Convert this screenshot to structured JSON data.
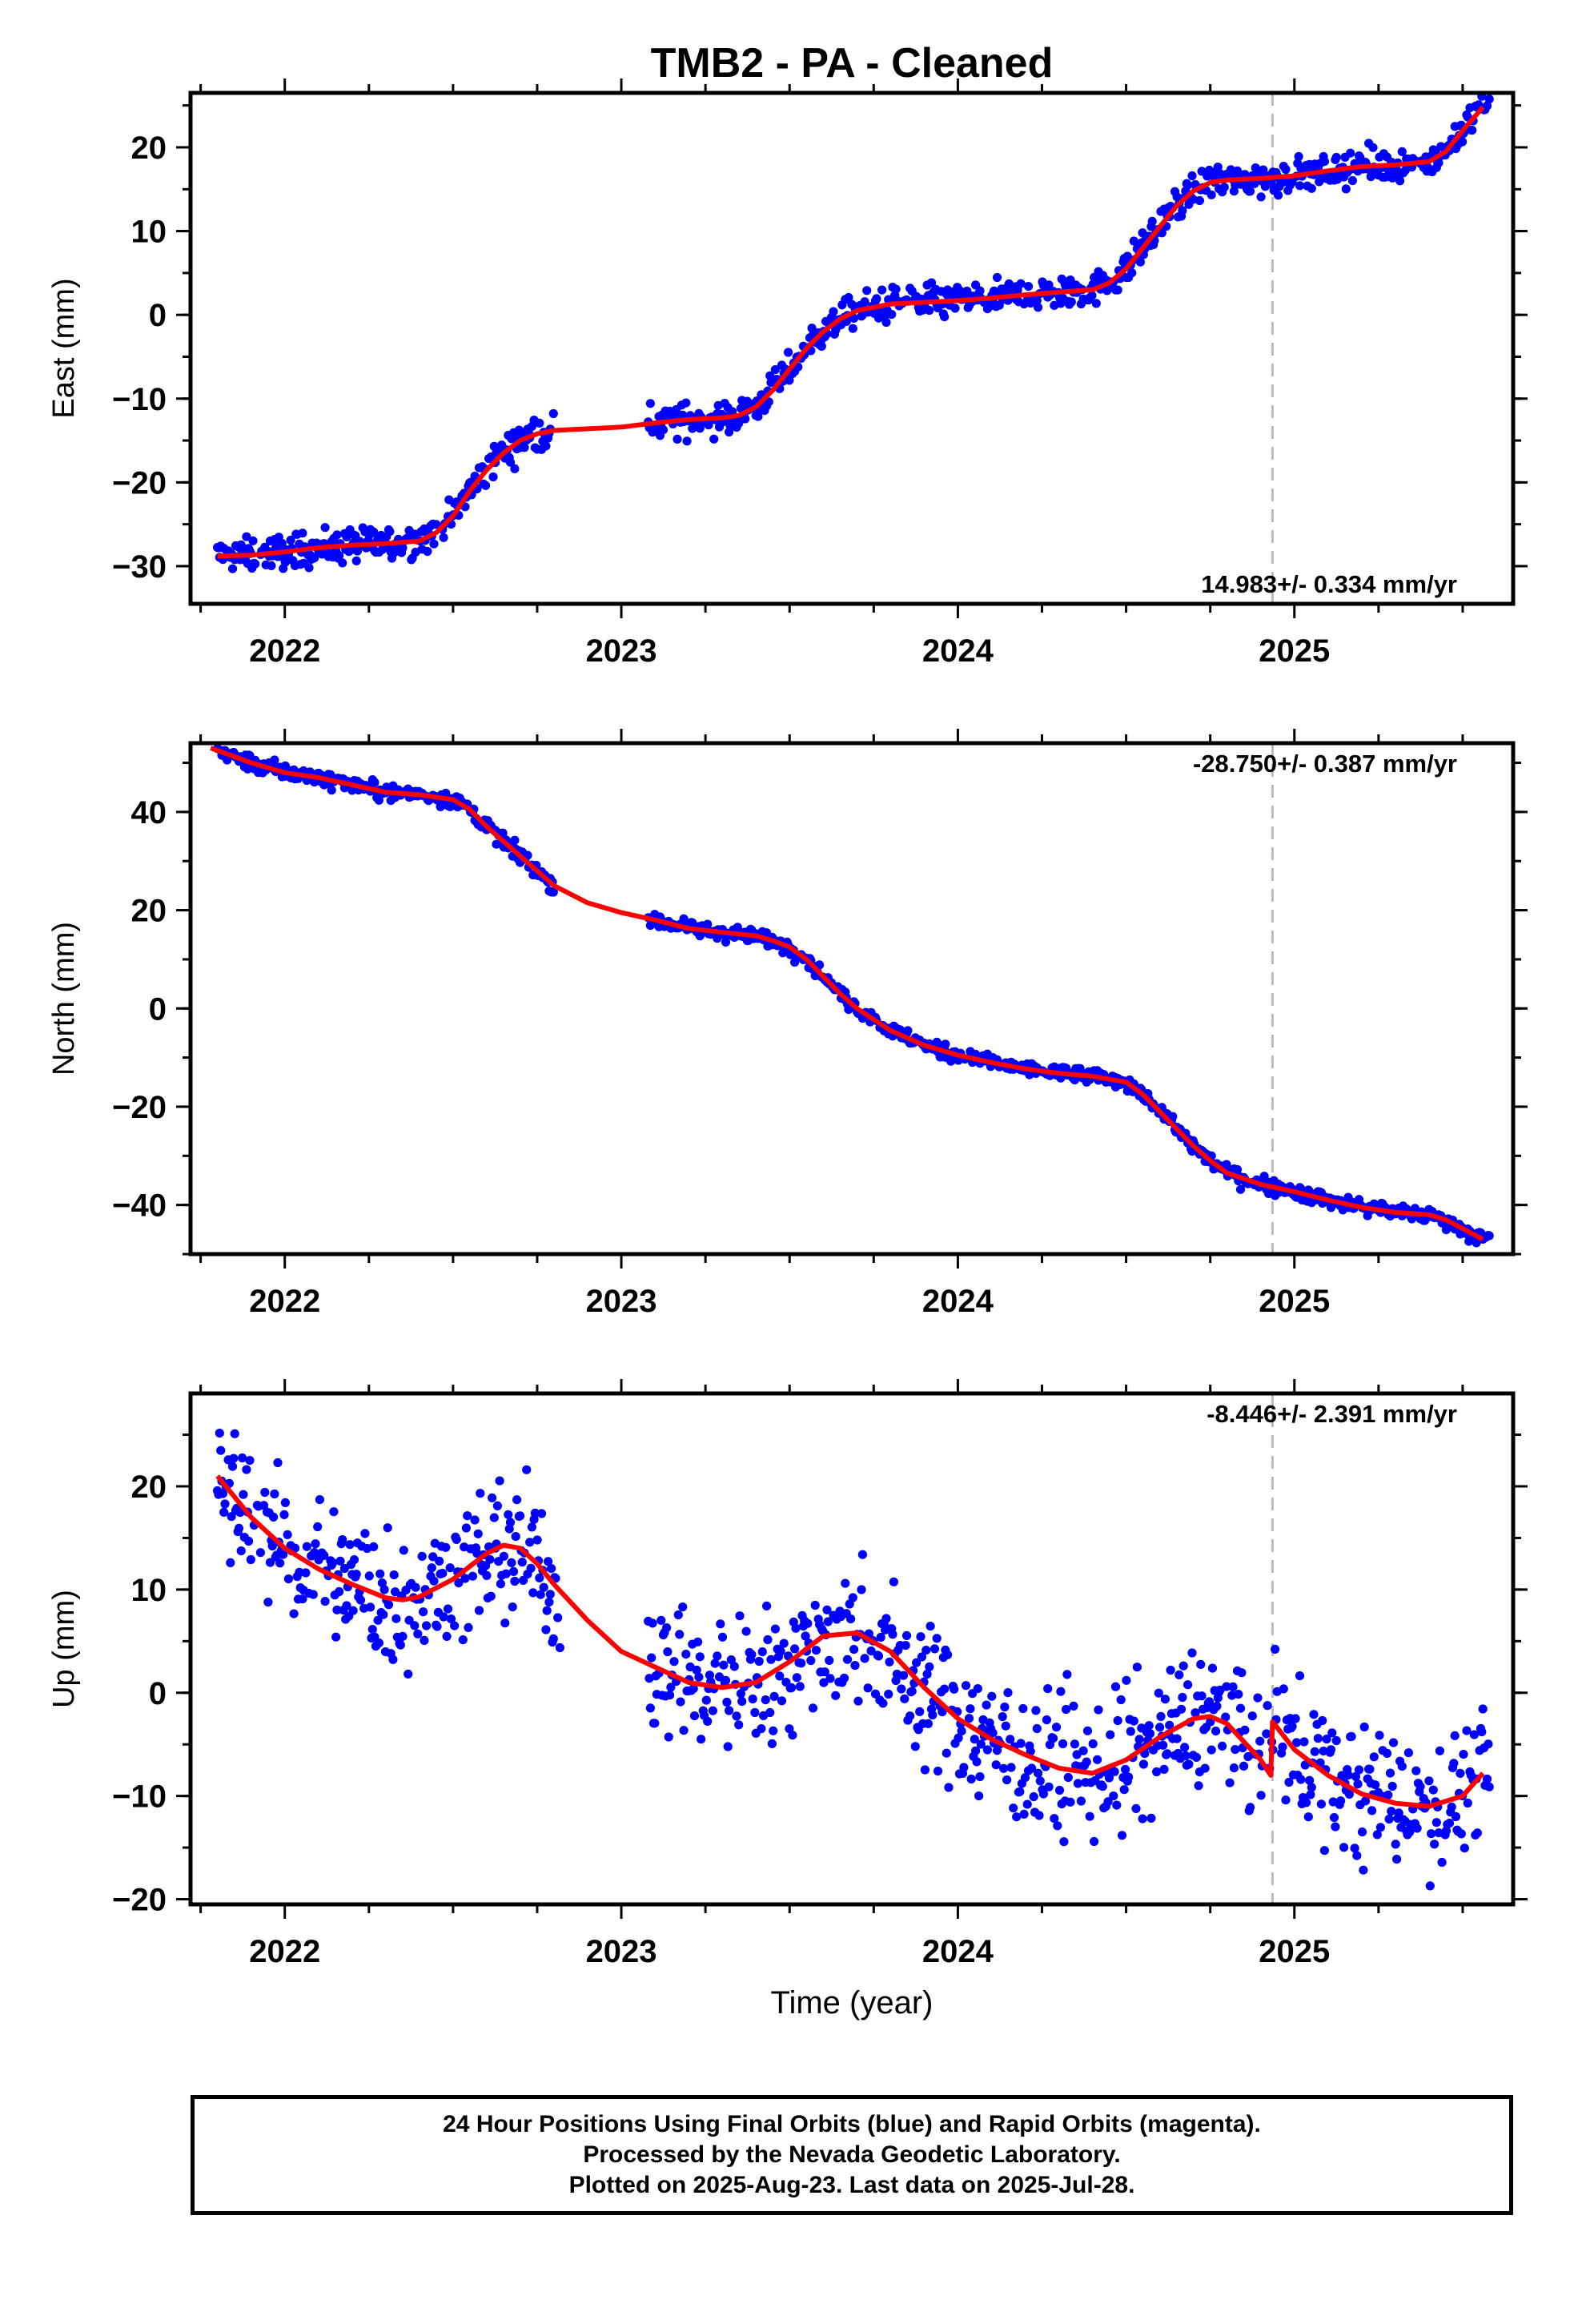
{
  "chart_data": [
    {
      "type": "scatter",
      "title": "TMB2  - PA - Cleaned",
      "ylabel": "East (mm)",
      "xlabel": "",
      "xlim": [
        2021.72,
        2025.65
      ],
      "ylim": [
        -34.5,
        26.5
      ],
      "xticks": [
        2022,
        2023,
        2024,
        2025
      ],
      "yticks": [
        -30,
        -20,
        -10,
        0,
        10,
        20
      ],
      "rate_label": "14.983+/- 0.334 mm/yr",
      "rate_position": "bottom-right",
      "event_marker_x": 2024.935,
      "series": [
        {
          "name": "Final Orbits (blue)",
          "color": "#0000ff",
          "noise": 1.4,
          "segments": [
            [
              2021.8,
              2022.8
            ],
            [
              2023.08,
              2025.58
            ]
          ]
        },
        {
          "name": "Model fit",
          "color": "#ff0000",
          "x": [
            2021.8,
            2021.9,
            2022.0,
            2022.1,
            2022.2,
            2022.3,
            2022.4,
            2022.45,
            2022.5,
            2022.55,
            2022.6,
            2022.65,
            2022.7,
            2022.75,
            2022.8,
            2022.9,
            2023.0,
            2023.1,
            2023.2,
            2023.3,
            2023.35,
            2023.4,
            2023.45,
            2023.5,
            2023.55,
            2023.6,
            2023.65,
            2023.7,
            2023.8,
            2023.9,
            2024.0,
            2024.1,
            2024.2,
            2024.3,
            2024.4,
            2024.45,
            2024.5,
            2024.55,
            2024.6,
            2024.65,
            2024.7,
            2024.75,
            2024.8,
            2024.9,
            2025.0,
            2025.1,
            2025.2,
            2025.3,
            2025.4,
            2025.45,
            2025.5,
            2025.56
          ],
          "y": [
            -28.8,
            -28.7,
            -28.3,
            -27.8,
            -27.5,
            -27.3,
            -27.0,
            -26.0,
            -24.0,
            -21.0,
            -18.5,
            -16.5,
            -15.0,
            -14.2,
            -13.8,
            -13.6,
            -13.4,
            -12.9,
            -12.5,
            -12.3,
            -12.0,
            -11.0,
            -9.0,
            -6.5,
            -4.0,
            -2.0,
            -0.5,
            0.5,
            1.3,
            1.5,
            1.7,
            2.0,
            2.4,
            2.7,
            3.0,
            3.8,
            5.5,
            8.0,
            10.5,
            13.0,
            14.8,
            15.8,
            16.1,
            16.3,
            16.6,
            17.2,
            17.7,
            17.9,
            18.3,
            19.5,
            22.0,
            24.8
          ]
        }
      ]
    },
    {
      "type": "scatter",
      "title": "",
      "ylabel": "North (mm)",
      "xlabel": "",
      "xlim": [
        2021.72,
        2025.65
      ],
      "ylim": [
        -50,
        54
      ],
      "xticks": [
        2022,
        2023,
        2024,
        2025
      ],
      "yticks": [
        -40,
        -20,
        0,
        20,
        40
      ],
      "rate_label": "-28.750+/- 0.387 mm/yr",
      "rate_position": "top-right",
      "event_marker_x": 2024.935,
      "series": [
        {
          "name": "Final Orbits (blue)",
          "color": "#0000ff",
          "noise": 1.1,
          "segments": [
            [
              2021.8,
              2022.8
            ],
            [
              2023.08,
              2025.58
            ]
          ]
        },
        {
          "name": "Model fit",
          "color": "#ff0000",
          "x": [
            2021.78,
            2021.9,
            2022.0,
            2022.1,
            2022.2,
            2022.3,
            2022.4,
            2022.5,
            2022.55,
            2022.6,
            2022.65,
            2022.7,
            2022.75,
            2022.8,
            2022.9,
            2023.0,
            2023.1,
            2023.2,
            2023.3,
            2023.4,
            2023.45,
            2023.5,
            2023.55,
            2023.6,
            2023.65,
            2023.7,
            2023.8,
            2023.9,
            2024.0,
            2024.1,
            2024.2,
            2024.3,
            2024.4,
            2024.5,
            2024.55,
            2024.6,
            2024.65,
            2024.7,
            2024.75,
            2024.8,
            2024.9,
            2025.0,
            2025.1,
            2025.2,
            2025.3,
            2025.4,
            2025.45,
            2025.5,
            2025.56
          ],
          "y": [
            53.0,
            50.0,
            48.0,
            47.0,
            45.5,
            44.0,
            43.5,
            42.5,
            40.5,
            37.0,
            34.0,
            31.0,
            28.0,
            25.0,
            21.5,
            19.5,
            18.0,
            16.3,
            15.5,
            14.8,
            13.8,
            12.5,
            10.0,
            6.5,
            3.0,
            0.0,
            -4.5,
            -7.5,
            -9.5,
            -11.0,
            -12.3,
            -13.2,
            -13.8,
            -15.0,
            -17.5,
            -21.0,
            -24.5,
            -28.0,
            -31.0,
            -33.5,
            -35.8,
            -37.3,
            -39.0,
            -40.5,
            -41.5,
            -42.0,
            -43.0,
            -44.8,
            -47.0
          ]
        }
      ]
    },
    {
      "type": "scatter",
      "title": "",
      "ylabel": "Up (mm)",
      "xlabel": "Time (year)",
      "xlim": [
        2021.72,
        2025.65
      ],
      "ylim": [
        -20.5,
        29
      ],
      "xticks": [
        2022,
        2023,
        2024,
        2025
      ],
      "yticks": [
        -20,
        -10,
        0,
        10,
        20
      ],
      "rate_label": "-8.446+/- 2.391 mm/yr",
      "rate_position": "top-right",
      "event_marker_x": 2024.935,
      "series": [
        {
          "name": "Final Orbits (blue)",
          "color": "#0000ff",
          "noise": 4.8,
          "segments": [
            [
              2021.8,
              2022.82
            ],
            [
              2023.08,
              2025.58
            ]
          ]
        },
        {
          "name": "Model fit",
          "color": "#ff0000",
          "x": [
            2021.8,
            2021.9,
            2022.0,
            2022.1,
            2022.2,
            2022.3,
            2022.35,
            2022.4,
            2022.5,
            2022.6,
            2022.65,
            2022.7,
            2022.75,
            2022.8,
            2022.9,
            2023.0,
            2023.1,
            2023.2,
            2023.3,
            2023.4,
            2023.5,
            2023.6,
            2023.7,
            2023.8,
            2023.9,
            2024.0,
            2024.1,
            2024.2,
            2024.3,
            2024.4,
            2024.5,
            2024.6,
            2024.7,
            2024.75,
            2024.8,
            2024.9,
            2024.93,
            2024.935,
            2025.0,
            2025.1,
            2025.2,
            2025.3,
            2025.4,
            2025.5,
            2025.56
          ],
          "y": [
            21.0,
            17.0,
            14.0,
            12.0,
            10.5,
            9.2,
            9.0,
            9.3,
            11.0,
            13.5,
            14.3,
            14.0,
            12.5,
            10.5,
            7.0,
            4.0,
            2.5,
            1.0,
            0.5,
            1.0,
            3.0,
            5.5,
            5.8,
            4.0,
            0.5,
            -2.5,
            -4.5,
            -6.0,
            -7.3,
            -7.8,
            -6.5,
            -4.3,
            -2.5,
            -2.3,
            -3.0,
            -6.5,
            -8.0,
            -2.8,
            -5.5,
            -8.0,
            -9.8,
            -10.7,
            -11.0,
            -10.0,
            -7.8
          ]
        }
      ]
    }
  ],
  "footer": {
    "line1": "24 Hour Positions Using Final Orbits (blue) and Rapid Orbits (magenta).",
    "line2": "Processed by the Nevada Geodetic Laboratory.",
    "line3": "Plotted on 2025-Aug-23. Last data on 2025-Jul-28."
  }
}
